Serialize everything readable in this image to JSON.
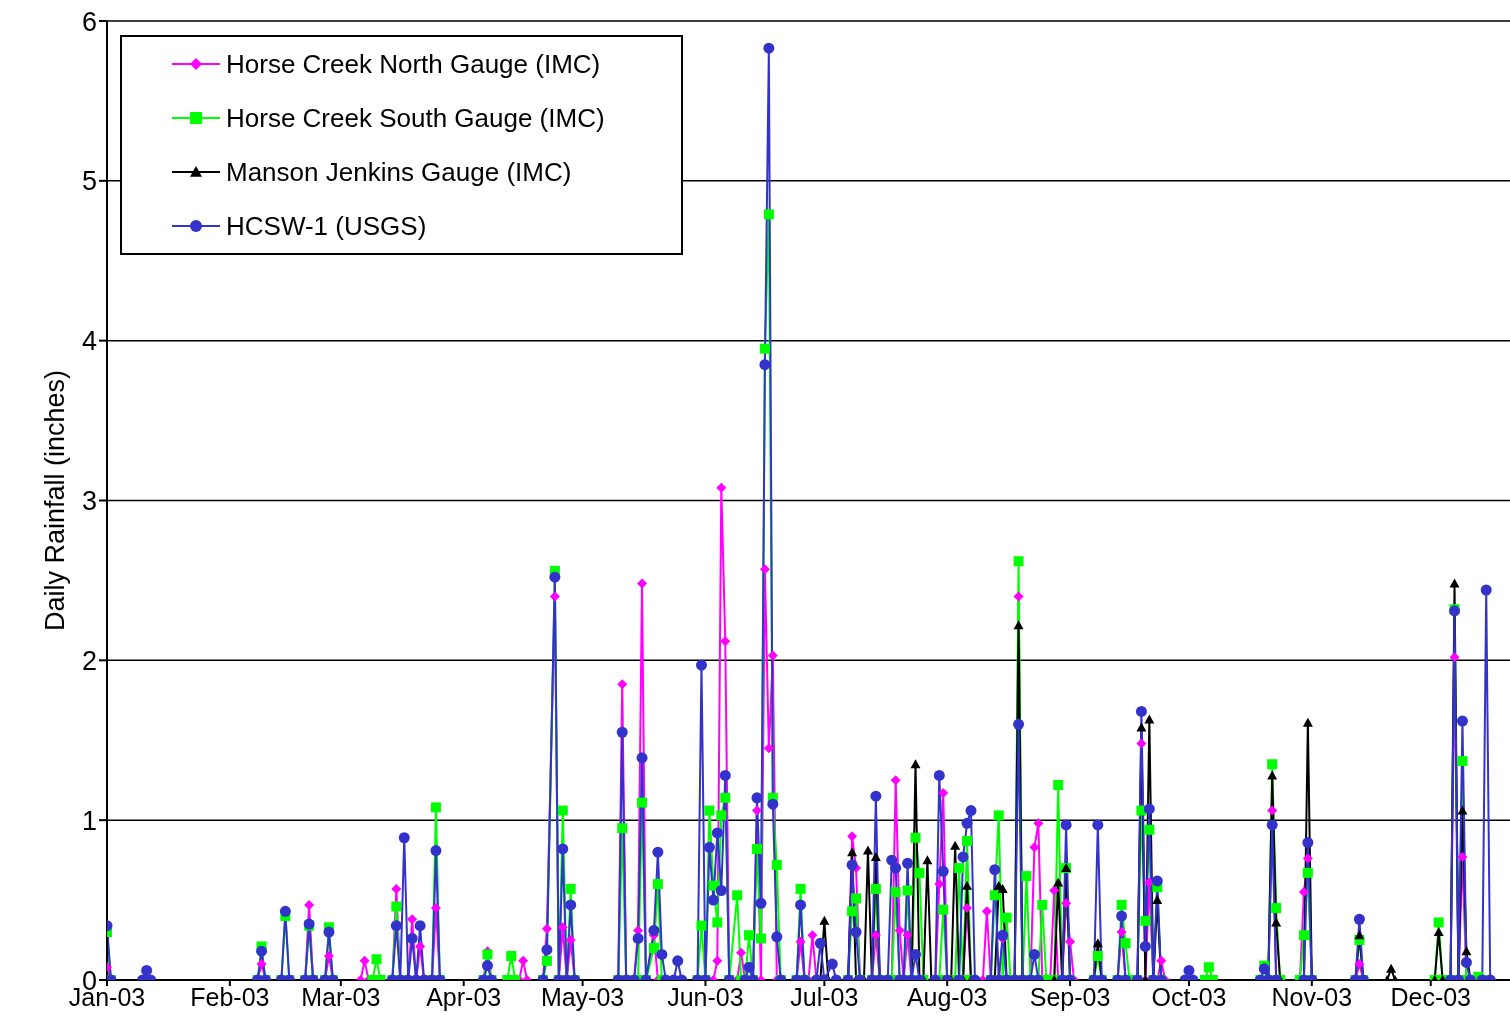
{
  "chart_data": {
    "type": "line",
    "ylabel": "Daily Rainfall (inches)",
    "xlim": [
      "2003-01-01",
      "2003-12-21"
    ],
    "xticks": [
      {
        "value": "2003-01-01",
        "label": "Jan-03"
      },
      {
        "value": "2003-02-01",
        "label": "Feb-03"
      },
      {
        "value": "2003-03-01",
        "label": "Mar-03"
      },
      {
        "value": "2003-04-01",
        "label": "Apr-03"
      },
      {
        "value": "2003-05-01",
        "label": "May-03"
      },
      {
        "value": "2003-06-01",
        "label": "Jun-03"
      },
      {
        "value": "2003-07-01",
        "label": "Jul-03"
      },
      {
        "value": "2003-08-01",
        "label": "Aug-03"
      },
      {
        "value": "2003-09-01",
        "label": "Sep-03"
      },
      {
        "value": "2003-10-01",
        "label": "Oct-03"
      },
      {
        "value": "2003-11-01",
        "label": "Nov-03"
      },
      {
        "value": "2003-12-01",
        "label": "Dec-03"
      }
    ],
    "ylim": [
      0,
      6
    ],
    "yticks": [
      0,
      1,
      2,
      3,
      4,
      5,
      6
    ],
    "grid": "y",
    "legend": "top left",
    "series": [
      {
        "name": "Horse Creek North Gauge (IMC)",
        "color": "#ff00ff",
        "marker": "diamond",
        "x": [
          "2003-01-01",
          "2003-01-02",
          "2003-02-08",
          "2003-02-09",
          "2003-02-10",
          "2003-02-20",
          "2003-02-21",
          "2003-02-22",
          "2003-02-25",
          "2003-02-26",
          "2003-02-27",
          "2003-03-06",
          "2003-03-07",
          "2003-03-08",
          "2003-03-14",
          "2003-03-15",
          "2003-03-16",
          "2003-03-18",
          "2003-03-19",
          "2003-03-20",
          "2003-03-21",
          "2003-03-22",
          "2003-03-24",
          "2003-03-25",
          "2003-03-26",
          "2003-04-06",
          "2003-04-07",
          "2003-04-08",
          "2003-04-15",
          "2003-04-16",
          "2003-04-17",
          "2003-04-21",
          "2003-04-22",
          "2003-04-24",
          "2003-04-25",
          "2003-04-26",
          "2003-04-27",
          "2003-04-28",
          "2003-04-29",
          "2003-05-10",
          "2003-05-11",
          "2003-05-12",
          "2003-05-14",
          "2003-05-15",
          "2003-05-16",
          "2003-05-17",
          "2003-05-19",
          "2003-05-20",
          "2003-06-03",
          "2003-06-04",
          "2003-06-05",
          "2003-06-06",
          "2003-06-07",
          "2003-06-09",
          "2003-06-10",
          "2003-06-11",
          "2003-06-13",
          "2003-06-14",
          "2003-06-15",
          "2003-06-16",
          "2003-06-17",
          "2003-06-18",
          "2003-06-19",
          "2003-06-24",
          "2003-06-25",
          "2003-06-26",
          "2003-06-27",
          "2003-06-28",
          "2003-06-29",
          "2003-07-07",
          "2003-07-08",
          "2003-07-09",
          "2003-07-10",
          "2003-07-13",
          "2003-07-14",
          "2003-07-15",
          "2003-07-18",
          "2003-07-19",
          "2003-07-20",
          "2003-07-21",
          "2003-07-22",
          "2003-07-23",
          "2003-07-29",
          "2003-07-30",
          "2003-07-31",
          "2003-08-01",
          "2003-08-05",
          "2003-08-06",
          "2003-08-07",
          "2003-08-10",
          "2003-08-11",
          "2003-08-12",
          "2003-08-14",
          "2003-08-15",
          "2003-08-16",
          "2003-08-18",
          "2003-08-19",
          "2003-08-20",
          "2003-08-22",
          "2003-08-23",
          "2003-08-24",
          "2003-08-25",
          "2003-08-27",
          "2003-08-28",
          "2003-08-29",
          "2003-08-30",
          "2003-08-31",
          "2003-09-01",
          "2003-09-02",
          "2003-09-13",
          "2003-09-14",
          "2003-09-15",
          "2003-09-18",
          "2003-09-19",
          "2003-09-20",
          "2003-09-21",
          "2003-09-22",
          "2003-09-23",
          "2003-09-24",
          "2003-09-25",
          "2003-10-21",
          "2003-10-22",
          "2003-10-23",
          "2003-10-29",
          "2003-10-30",
          "2003-10-31",
          "2003-11-01",
          "2003-11-12",
          "2003-11-13",
          "2003-11-14",
          "2003-12-06",
          "2003-12-07",
          "2003-12-08",
          "2003-12-09",
          "2003-12-10",
          "2003-12-16"
        ],
        "values": [
          0.08,
          0,
          0,
          0.1,
          0,
          0,
          0.47,
          0,
          0,
          0.15,
          0,
          0,
          0.12,
          0,
          0,
          0.57,
          0,
          0,
          0.38,
          0,
          0.21,
          0,
          0,
          0.45,
          0,
          0,
          0.18,
          0,
          0,
          0.12,
          0,
          0,
          0.32,
          2.4,
          0,
          0.33,
          0,
          0.25,
          0,
          0,
          1.85,
          0,
          0,
          0.31,
          2.48,
          0,
          0.28,
          0,
          0,
          0.12,
          3.08,
          2.12,
          0,
          0,
          0.17,
          0,
          0,
          1.06,
          0,
          2.57,
          1.45,
          2.03,
          0,
          0,
          0.24,
          0,
          0,
          0.28,
          0,
          0,
          0.9,
          0.7,
          0,
          0,
          0.28,
          0,
          0,
          1.25,
          0.31,
          0,
          0.28,
          0,
          0,
          0.6,
          1.17,
          0,
          0,
          0.45,
          0,
          0,
          0.43,
          0,
          0,
          0.26,
          0,
          0,
          2.4,
          0,
          0,
          0.83,
          0.98,
          0,
          0,
          0.56,
          0,
          0,
          0.48,
          0.24,
          0,
          0,
          0.3,
          0,
          0,
          1.48,
          0,
          0.61,
          0,
          0,
          0.12,
          0,
          0,
          1.06,
          0,
          0,
          0.55,
          0.76,
          0,
          0,
          0.1,
          0,
          0,
          2.02,
          0,
          0.77,
          0,
          0
        ]
      },
      {
        "name": "Horse Creek South Gauge (IMC)",
        "color": "#00ff00",
        "marker": "square",
        "x": [
          "2003-01-01",
          "2003-01-02",
          "2003-02-08",
          "2003-02-09",
          "2003-02-10",
          "2003-02-14",
          "2003-02-15",
          "2003-02-16",
          "2003-02-20",
          "2003-02-21",
          "2003-02-22",
          "2003-02-25",
          "2003-02-26",
          "2003-02-27",
          "2003-03-09",
          "2003-03-10",
          "2003-03-11",
          "2003-03-14",
          "2003-03-15",
          "2003-03-16",
          "2003-03-24",
          "2003-03-25",
          "2003-03-26",
          "2003-04-06",
          "2003-04-07",
          "2003-04-08",
          "2003-04-12",
          "2003-04-13",
          "2003-04-14",
          "2003-04-21",
          "2003-04-22",
          "2003-04-24",
          "2003-04-25",
          "2003-04-26",
          "2003-04-27",
          "2003-04-28",
          "2003-04-29",
          "2003-05-10",
          "2003-05-11",
          "2003-05-12",
          "2003-05-15",
          "2003-05-16",
          "2003-05-17",
          "2003-05-19",
          "2003-05-20",
          "2003-05-21",
          "2003-05-30",
          "2003-05-31",
          "2003-06-01",
          "2003-06-02",
          "2003-06-03",
          "2003-06-04",
          "2003-06-05",
          "2003-06-06",
          "2003-06-07",
          "2003-06-09",
          "2003-06-10",
          "2003-06-11",
          "2003-06-12",
          "2003-06-13",
          "2003-06-14",
          "2003-06-15",
          "2003-06-16",
          "2003-06-17",
          "2003-06-18",
          "2003-06-19",
          "2003-06-20",
          "2003-06-24",
          "2003-06-25",
          "2003-06-26",
          "2003-07-07",
          "2003-07-08",
          "2003-07-09",
          "2003-07-10",
          "2003-07-13",
          "2003-07-14",
          "2003-07-15",
          "2003-07-18",
          "2003-07-19",
          "2003-07-20",
          "2003-07-21",
          "2003-07-22",
          "2003-07-23",
          "2003-07-24",
          "2003-07-25",
          "2003-07-26",
          "2003-07-30",
          "2003-07-31",
          "2003-08-01",
          "2003-08-03",
          "2003-08-04",
          "2003-08-05",
          "2003-08-06",
          "2003-08-07",
          "2003-08-12",
          "2003-08-13",
          "2003-08-14",
          "2003-08-15",
          "2003-08-16",
          "2003-08-17",
          "2003-08-18",
          "2003-08-19",
          "2003-08-20",
          "2003-08-21",
          "2003-08-22",
          "2003-08-24",
          "2003-08-25",
          "2003-08-26",
          "2003-08-28",
          "2003-08-29",
          "2003-08-30",
          "2003-08-31",
          "2003-09-01",
          "2003-09-07",
          "2003-09-08",
          "2003-09-09",
          "2003-09-13",
          "2003-09-14",
          "2003-09-15",
          "2003-09-16",
          "2003-09-18",
          "2003-09-19",
          "2003-09-20",
          "2003-09-21",
          "2003-09-22",
          "2003-09-23",
          "2003-09-24",
          "2003-10-05",
          "2003-10-06",
          "2003-10-07",
          "2003-10-19",
          "2003-10-20",
          "2003-10-21",
          "2003-10-22",
          "2003-10-23",
          "2003-10-24",
          "2003-10-29",
          "2003-10-30",
          "2003-10-31",
          "2003-11-01",
          "2003-11-12",
          "2003-11-13",
          "2003-11-14",
          "2003-12-02",
          "2003-12-03",
          "2003-12-04",
          "2003-12-06",
          "2003-12-07",
          "2003-12-08",
          "2003-12-09",
          "2003-12-10",
          "2003-12-13",
          "2003-12-14"
        ],
        "values": [
          0.3,
          0,
          0,
          0.21,
          0,
          0,
          0.4,
          0,
          0,
          0.34,
          0,
          0,
          0.33,
          0,
          0,
          0.13,
          0,
          0,
          0.46,
          0,
          0,
          1.08,
          0,
          0,
          0.16,
          0,
          0,
          0.15,
          0,
          0,
          0.12,
          2.56,
          0,
          1.06,
          0,
          0.57,
          0,
          0,
          0.95,
          0,
          0,
          1.11,
          0,
          0.2,
          0.6,
          0,
          0,
          0.34,
          0,
          1.06,
          0.59,
          0.36,
          1.03,
          1.14,
          0,
          0.53,
          0,
          0,
          0.28,
          0,
          0.82,
          0.26,
          3.95,
          4.79,
          1.14,
          0.72,
          0,
          0,
          0.57,
          0,
          0,
          0.43,
          0.51,
          0,
          0,
          0.57,
          0,
          0,
          0.55,
          0,
          0,
          0.56,
          0,
          0.89,
          0.67,
          0,
          0,
          0.44,
          0,
          0,
          0.7,
          0,
          0.87,
          0,
          0,
          0.53,
          1.03,
          0,
          0.39,
          0,
          0,
          2.62,
          0,
          0.65,
          0,
          0,
          0.47,
          0,
          0,
          1.22,
          0,
          0.7,
          0,
          0,
          0.15,
          0,
          0,
          0.47,
          0.23,
          0,
          0,
          1.06,
          0.37,
          0.94,
          0,
          0.58,
          0,
          0,
          0.08,
          0,
          0,
          0.09,
          0,
          1.35,
          0.45,
          0,
          0,
          0.28,
          0.67,
          0,
          0,
          0.25,
          0,
          0,
          0.36,
          0,
          0,
          2.32,
          0,
          1.37,
          0,
          0.02,
          0
        ]
      },
      {
        "name": "Manson Jenkins Gauge (IMC)",
        "color": "#000000",
        "marker": "triangle",
        "x": [
          "2003-01-01",
          "2003-06-30",
          "2003-07-01",
          "2003-07-02",
          "2003-07-07",
          "2003-07-08",
          "2003-07-09",
          "2003-07-11",
          "2003-07-12",
          "2003-07-13",
          "2003-07-14",
          "2003-07-15",
          "2003-07-23",
          "2003-07-24",
          "2003-07-25",
          "2003-07-26",
          "2003-07-27",
          "2003-07-28",
          "2003-08-02",
          "2003-08-03",
          "2003-08-04",
          "2003-08-05",
          "2003-08-06",
          "2003-08-07",
          "2003-08-13",
          "2003-08-14",
          "2003-08-15",
          "2003-08-16",
          "2003-08-18",
          "2003-08-19",
          "2003-08-20",
          "2003-08-28",
          "2003-08-29",
          "2003-08-30",
          "2003-08-31",
          "2003-09-01",
          "2003-09-07",
          "2003-09-08",
          "2003-09-09",
          "2003-09-18",
          "2003-09-19",
          "2003-09-20",
          "2003-09-21",
          "2003-09-22",
          "2003-09-23",
          "2003-09-24",
          "2003-10-21",
          "2003-10-22",
          "2003-10-23",
          "2003-10-24",
          "2003-10-30",
          "2003-10-31",
          "2003-11-01",
          "2003-11-12",
          "2003-11-13",
          "2003-11-14",
          "2003-11-20",
          "2003-11-21",
          "2003-11-22",
          "2003-12-02",
          "2003-12-03",
          "2003-12-04",
          "2003-12-06",
          "2003-12-07",
          "2003-12-08",
          "2003-12-09",
          "2003-12-10",
          "2003-12-11",
          "2003-12-16"
        ],
        "values": [
          0,
          0,
          0.37,
          0,
          0,
          0.8,
          0,
          0,
          0.81,
          0,
          0.77,
          0,
          0,
          1.35,
          0,
          0,
          0.75,
          0,
          0,
          0.84,
          0,
          0,
          0.59,
          0,
          0,
          0.59,
          0.57,
          0,
          0,
          2.22,
          0,
          0,
          0.61,
          0,
          0.7,
          0,
          0,
          0.23,
          0,
          0,
          1.58,
          0,
          1.63,
          0,
          0.5,
          0,
          0,
          1.28,
          0.36,
          0,
          0,
          1.61,
          0,
          0,
          0.28,
          0,
          0,
          0.07,
          0,
          0,
          0.3,
          0,
          0,
          2.48,
          0,
          1.06,
          0.18,
          0,
          0
        ]
      },
      {
        "name": "HCSW-1 (USGS)",
        "color": "#3333cc",
        "marker": "circle",
        "x": [
          "2003-01-01",
          "2003-01-02",
          "2003-01-10",
          "2003-01-11",
          "2003-01-12",
          "2003-02-08",
          "2003-02-09",
          "2003-02-10",
          "2003-02-14",
          "2003-02-15",
          "2003-02-16",
          "2003-02-20",
          "2003-02-21",
          "2003-02-22",
          "2003-02-25",
          "2003-02-26",
          "2003-02-27",
          "2003-03-14",
          "2003-03-15",
          "2003-03-16",
          "2003-03-17",
          "2003-03-18",
          "2003-03-19",
          "2003-03-20",
          "2003-03-21",
          "2003-03-22",
          "2003-03-24",
          "2003-03-25",
          "2003-03-26",
          "2003-04-06",
          "2003-04-07",
          "2003-04-08",
          "2003-04-21",
          "2003-04-22",
          "2003-04-24",
          "2003-04-25",
          "2003-04-26",
          "2003-04-27",
          "2003-04-28",
          "2003-04-29",
          "2003-05-10",
          "2003-05-11",
          "2003-05-12",
          "2003-05-14",
          "2003-05-15",
          "2003-05-16",
          "2003-05-17",
          "2003-05-19",
          "2003-05-20",
          "2003-05-21",
          "2003-05-22",
          "2003-05-24",
          "2003-05-25",
          "2003-05-26",
          "2003-05-30",
          "2003-05-31",
          "2003-06-01",
          "2003-06-02",
          "2003-06-03",
          "2003-06-04",
          "2003-06-05",
          "2003-06-06",
          "2003-06-07",
          "2003-06-11",
          "2003-06-12",
          "2003-06-13",
          "2003-06-14",
          "2003-06-15",
          "2003-06-16",
          "2003-06-17",
          "2003-06-18",
          "2003-06-19",
          "2003-06-20",
          "2003-06-24",
          "2003-06-25",
          "2003-06-26",
          "2003-06-29",
          "2003-06-30",
          "2003-07-01",
          "2003-07-03",
          "2003-07-04",
          "2003-07-07",
          "2003-07-08",
          "2003-07-09",
          "2003-07-10",
          "2003-07-13",
          "2003-07-14",
          "2003-07-15",
          "2003-07-17",
          "2003-07-18",
          "2003-07-19",
          "2003-07-20",
          "2003-07-21",
          "2003-07-22",
          "2003-07-23",
          "2003-07-24",
          "2003-07-25",
          "2003-07-29",
          "2003-07-30",
          "2003-07-31",
          "2003-08-01",
          "2003-08-04",
          "2003-08-05",
          "2003-08-06",
          "2003-08-07",
          "2003-08-08",
          "2003-08-12",
          "2003-08-13",
          "2003-08-14",
          "2003-08-15",
          "2003-08-16",
          "2003-08-18",
          "2003-08-19",
          "2003-08-20",
          "2003-08-22",
          "2003-08-23",
          "2003-08-24",
          "2003-08-30",
          "2003-08-31",
          "2003-09-01",
          "2003-09-07",
          "2003-09-08",
          "2003-09-09",
          "2003-09-13",
          "2003-09-14",
          "2003-09-15",
          "2003-09-18",
          "2003-09-19",
          "2003-09-20",
          "2003-09-21",
          "2003-09-22",
          "2003-09-23",
          "2003-09-24",
          "2003-09-30",
          "2003-10-01",
          "2003-10-02",
          "2003-10-19",
          "2003-10-20",
          "2003-10-21",
          "2003-10-22",
          "2003-10-23",
          "2003-10-30",
          "2003-10-31",
          "2003-11-01",
          "2003-11-12",
          "2003-11-13",
          "2003-11-14",
          "2003-12-06",
          "2003-12-07",
          "2003-12-08",
          "2003-12-09",
          "2003-12-10",
          "2003-12-11",
          "2003-12-14",
          "2003-12-15",
          "2003-12-16"
        ],
        "values": [
          0.34,
          0,
          0,
          0.06,
          0,
          0,
          0.18,
          0,
          0,
          0.43,
          0,
          0,
          0.35,
          0,
          0,
          0.3,
          0,
          0,
          0.34,
          0,
          0.89,
          0,
          0.26,
          0,
          0.34,
          0,
          0,
          0.81,
          0,
          0,
          0.09,
          0,
          0,
          0.19,
          2.52,
          0,
          0.82,
          0,
          0.47,
          0,
          0,
          1.55,
          0,
          0,
          0.26,
          1.39,
          0,
          0.31,
          0.8,
          0.16,
          0,
          0,
          0.12,
          0,
          0,
          1.97,
          0,
          0.83,
          0.5,
          0.92,
          0.56,
          1.28,
          0,
          0,
          0.08,
          0,
          1.14,
          0.48,
          3.85,
          5.83,
          1.1,
          0.27,
          0,
          0,
          0.47,
          0,
          0,
          0.23,
          0,
          0.1,
          0,
          0,
          0.72,
          0.3,
          0,
          0,
          1.15,
          0,
          0,
          0.75,
          0.7,
          0,
          0,
          0.73,
          0,
          0.16,
          0,
          0,
          1.28,
          0.68,
          0,
          0,
          0.77,
          0.98,
          1.06,
          0,
          0,
          0.69,
          0,
          0.28,
          0,
          0,
          1.6,
          0,
          0,
          0.16,
          0,
          0,
          0.97,
          0,
          0,
          0.97,
          0,
          0,
          0.4,
          0,
          0,
          1.68,
          0.21,
          1.07,
          0,
          0.62,
          0,
          0,
          0.06,
          0,
          0,
          0.07,
          0,
          0.97,
          0,
          0,
          0.86,
          0,
          0,
          0.38,
          0,
          0,
          2.31,
          0,
          1.62,
          0.11,
          0,
          0,
          2.44,
          0
        ]
      }
    ]
  }
}
